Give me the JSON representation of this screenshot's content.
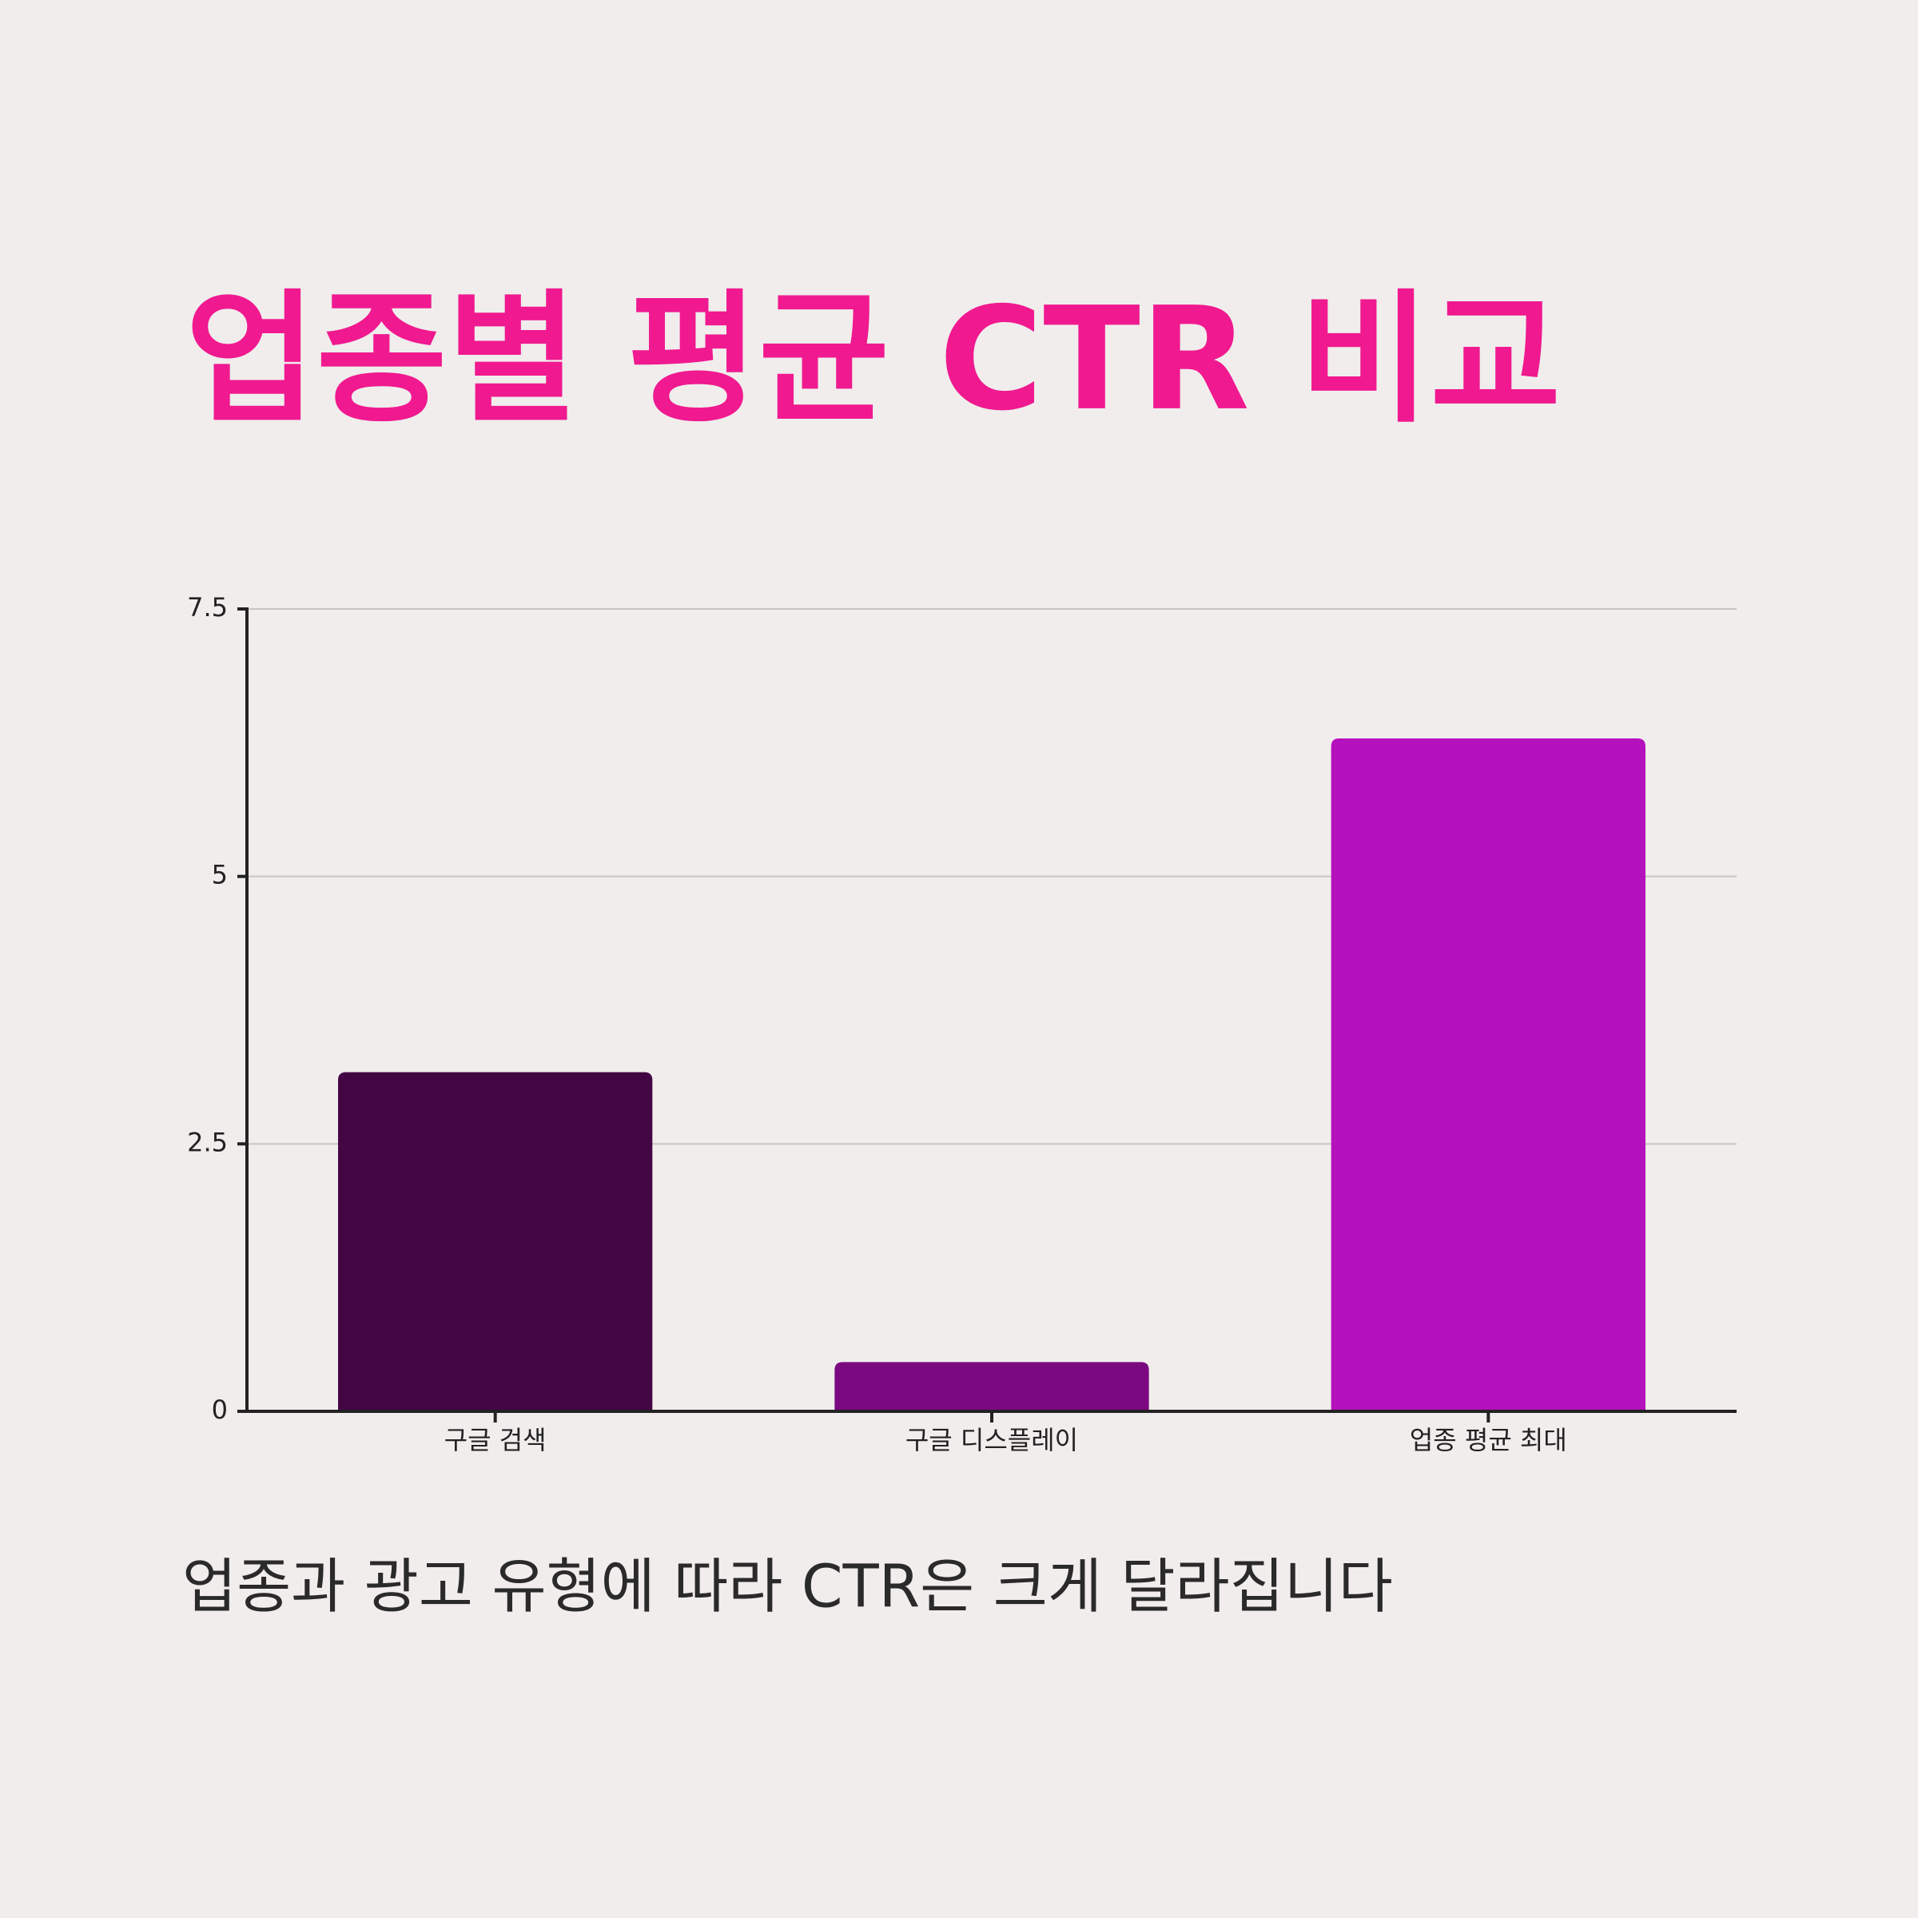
{
  "chart_data": {
    "type": "bar",
    "title": "업종별 평균 CTR 비교",
    "subtitle": "업종과 광고 유형에 따라 CTR은 크게 달라집니다",
    "categories": [
      "구글 검색",
      "구글 디스플레이",
      "업종 평균 최대"
    ],
    "values": [
      3.17,
      0.46,
      6.29
    ],
    "colors": [
      "#430645",
      "#7b0a80",
      "#b511bd"
    ],
    "ylim": [
      0,
      7.5
    ],
    "yticks": [
      0,
      2.5,
      5,
      7.5
    ],
    "grid": true
  }
}
